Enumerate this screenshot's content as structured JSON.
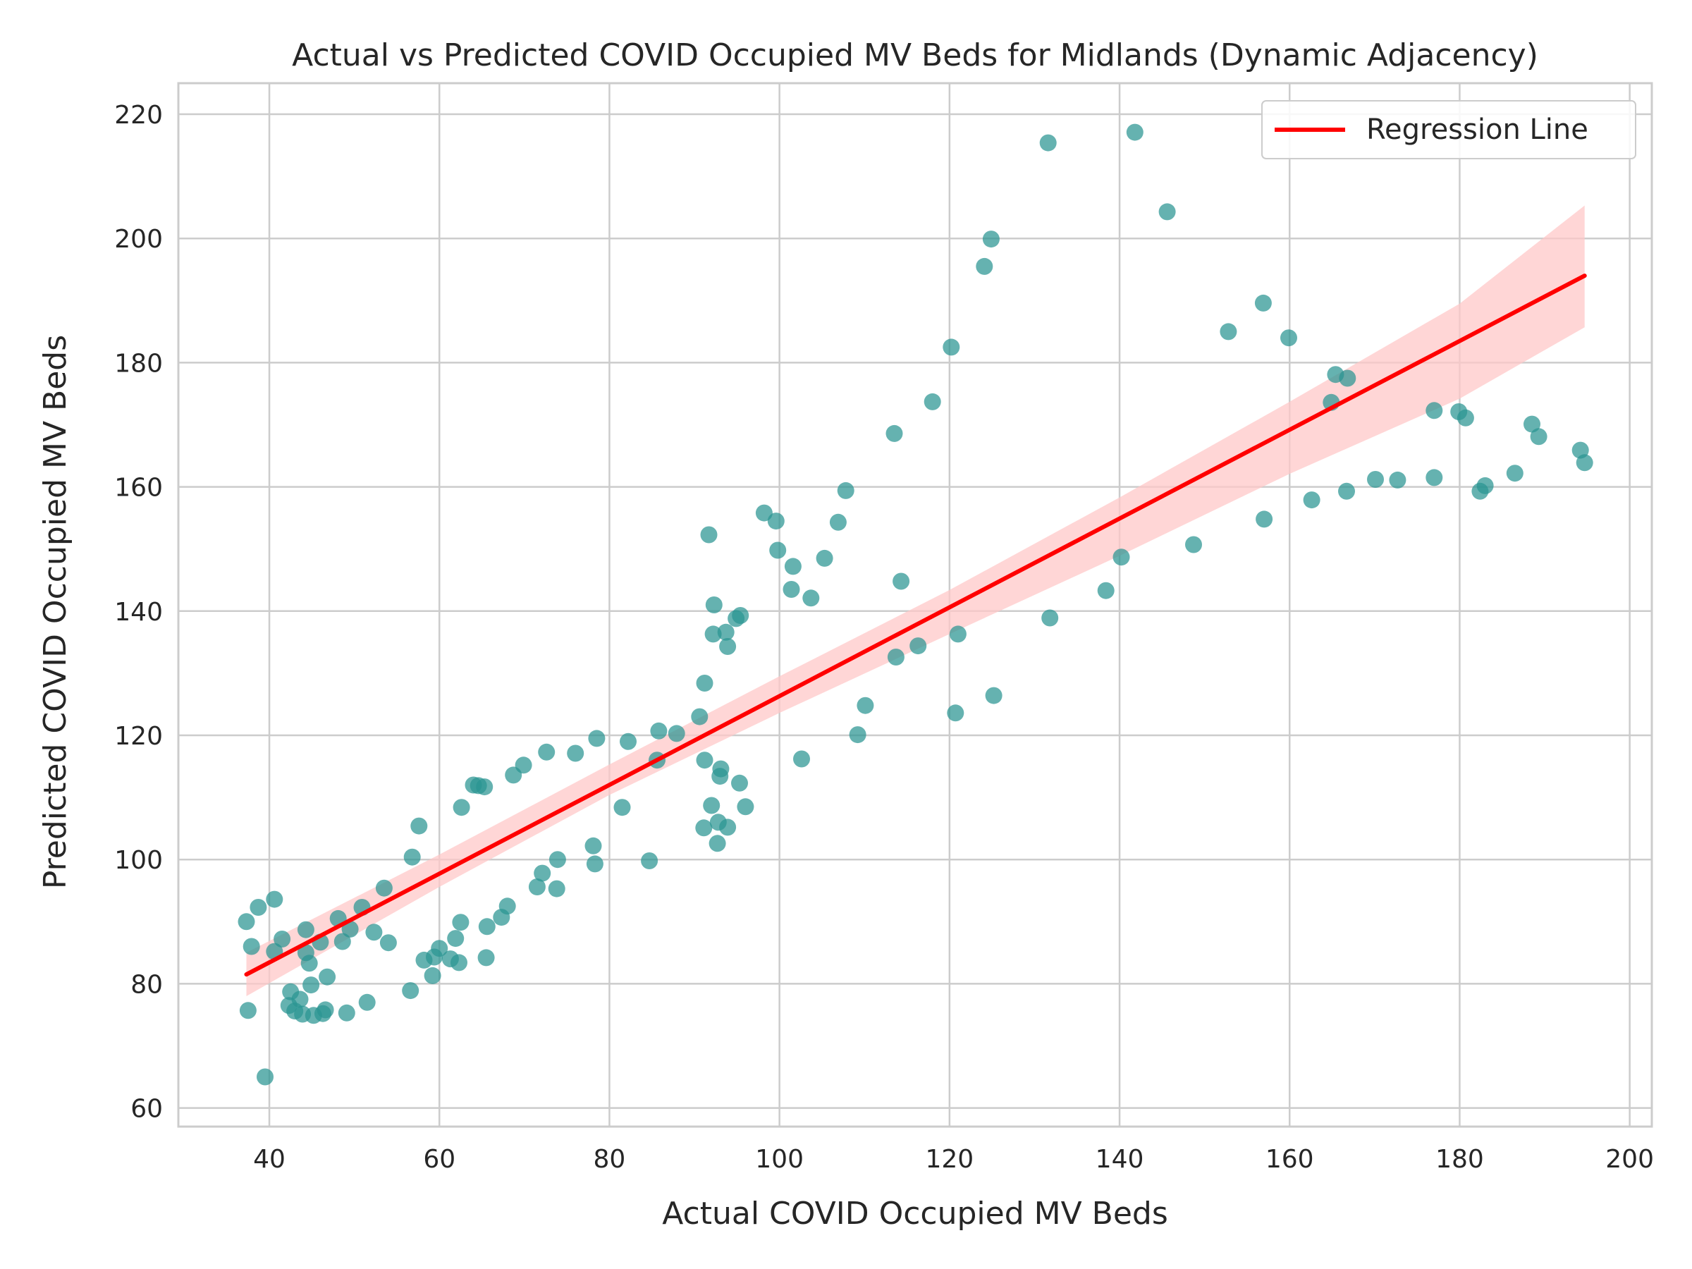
{
  "chart_data": {
    "type": "scatter",
    "title": "Actual vs Predicted COVID Occupied MV Beds for Midlands (Dynamic Adjacency)",
    "xlabel": "Actual COVID Occupied MV Beds",
    "ylabel": "Predicted COVID Occupied MV Beds",
    "xlim": [
      29.3,
      202.6
    ],
    "ylim": [
      57,
      225
    ],
    "xticks": [
      40,
      60,
      80,
      100,
      120,
      140,
      160,
      180,
      200
    ],
    "yticks": [
      60,
      80,
      100,
      120,
      140,
      160,
      180,
      200,
      220
    ],
    "grid": true,
    "legend_position": "top-right",
    "colors": {
      "points": "#2a9492",
      "regression": "#ff0000",
      "band": "#ffc8c8"
    },
    "points": [
      [
        37.3,
        90.0
      ],
      [
        37.5,
        75.7
      ],
      [
        37.9,
        86.0
      ],
      [
        38.7,
        92.3
      ],
      [
        39.5,
        65.0
      ],
      [
        40.6,
        93.6
      ],
      [
        40.6,
        85.2
      ],
      [
        41.5,
        87.2
      ],
      [
        42.3,
        76.5
      ],
      [
        42.5,
        78.7
      ],
      [
        43.0,
        75.6
      ],
      [
        43.6,
        77.5
      ],
      [
        43.9,
        75.1
      ],
      [
        44.3,
        88.7
      ],
      [
        44.3,
        85.0
      ],
      [
        44.7,
        83.3
      ],
      [
        44.9,
        79.8
      ],
      [
        45.2,
        74.9
      ],
      [
        46.0,
        86.7
      ],
      [
        46.3,
        75.2
      ],
      [
        46.6,
        75.8
      ],
      [
        46.8,
        81.1
      ],
      [
        48.1,
        90.5
      ],
      [
        48.6,
        86.8
      ],
      [
        49.1,
        75.3
      ],
      [
        49.5,
        88.8
      ],
      [
        50.9,
        92.3
      ],
      [
        51.5,
        77.0
      ],
      [
        52.3,
        88.3
      ],
      [
        53.5,
        95.4
      ],
      [
        54.0,
        86.6
      ],
      [
        56.6,
        78.9
      ],
      [
        56.8,
        100.4
      ],
      [
        57.6,
        105.4
      ],
      [
        58.2,
        83.8
      ],
      [
        59.2,
        81.3
      ],
      [
        59.4,
        84.3
      ],
      [
        60.0,
        85.7
      ],
      [
        61.3,
        84.0
      ],
      [
        61.9,
        87.3
      ],
      [
        62.3,
        83.4
      ],
      [
        62.5,
        89.9
      ],
      [
        62.6,
        108.4
      ],
      [
        64.0,
        112.0
      ],
      [
        64.6,
        111.9
      ],
      [
        65.3,
        111.7
      ],
      [
        65.5,
        84.2
      ],
      [
        65.6,
        89.2
      ],
      [
        67.3,
        90.7
      ],
      [
        68.0,
        92.5
      ],
      [
        68.7,
        113.6
      ],
      [
        69.9,
        115.2
      ],
      [
        71.5,
        95.6
      ],
      [
        72.1,
        97.8
      ],
      [
        72.6,
        117.3
      ],
      [
        73.8,
        95.3
      ],
      [
        73.9,
        100.0
      ],
      [
        76.0,
        117.1
      ],
      [
        78.1,
        102.2
      ],
      [
        78.3,
        99.3
      ],
      [
        78.5,
        119.5
      ],
      [
        81.5,
        108.4
      ],
      [
        82.2,
        119.0
      ],
      [
        84.7,
        99.8
      ],
      [
        85.6,
        116.0
      ],
      [
        85.8,
        120.7
      ],
      [
        87.9,
        120.3
      ],
      [
        90.6,
        123.0
      ],
      [
        91.1,
        105.1
      ],
      [
        91.2,
        128.4
      ],
      [
        91.2,
        116.0
      ],
      [
        91.7,
        152.3
      ],
      [
        92.0,
        108.7
      ],
      [
        92.2,
        136.3
      ],
      [
        92.3,
        141.0
      ],
      [
        92.7,
        102.6
      ],
      [
        92.8,
        106.0
      ],
      [
        93.0,
        113.4
      ],
      [
        93.1,
        114.6
      ],
      [
        93.7,
        136.6
      ],
      [
        93.9,
        105.2
      ],
      [
        93.9,
        134.3
      ],
      [
        94.9,
        138.8
      ],
      [
        95.3,
        112.3
      ],
      [
        95.4,
        139.3
      ],
      [
        96.0,
        108.5
      ],
      [
        98.2,
        155.8
      ],
      [
        99.6,
        154.5
      ],
      [
        99.8,
        149.8
      ],
      [
        101.4,
        143.5
      ],
      [
        101.6,
        147.2
      ],
      [
        102.6,
        116.2
      ],
      [
        103.7,
        142.1
      ],
      [
        105.3,
        148.5
      ],
      [
        106.9,
        154.3
      ],
      [
        107.8,
        159.4
      ],
      [
        109.2,
        120.1
      ],
      [
        110.1,
        124.8
      ],
      [
        113.5,
        168.6
      ],
      [
        113.7,
        132.6
      ],
      [
        114.3,
        144.8
      ],
      [
        116.3,
        134.4
      ],
      [
        118.0,
        173.7
      ],
      [
        120.2,
        182.5
      ],
      [
        120.7,
        123.6
      ],
      [
        121.0,
        136.3
      ],
      [
        124.1,
        195.5
      ],
      [
        124.9,
        199.9
      ],
      [
        125.2,
        126.4
      ],
      [
        131.6,
        215.4
      ],
      [
        131.8,
        138.9
      ],
      [
        138.4,
        143.3
      ],
      [
        140.2,
        148.7
      ],
      [
        141.8,
        217.1
      ],
      [
        145.6,
        204.3
      ],
      [
        148.7,
        150.7
      ],
      [
        152.8,
        185.0
      ],
      [
        156.9,
        189.6
      ],
      [
        157.0,
        154.8
      ],
      [
        159.9,
        184.0
      ],
      [
        162.6,
        157.9
      ],
      [
        164.9,
        173.6
      ],
      [
        165.4,
        178.1
      ],
      [
        166.7,
        159.3
      ],
      [
        166.8,
        177.5
      ],
      [
        170.1,
        161.2
      ],
      [
        172.7,
        161.1
      ],
      [
        177.0,
        172.3
      ],
      [
        177.0,
        161.5
      ],
      [
        179.9,
        172.1
      ],
      [
        180.7,
        171.1
      ],
      [
        182.4,
        159.3
      ],
      [
        183.0,
        160.2
      ],
      [
        186.5,
        162.2
      ],
      [
        188.5,
        170.1
      ],
      [
        189.3,
        168.1
      ],
      [
        194.2,
        165.9
      ],
      [
        194.7,
        163.9
      ]
    ],
    "regression": {
      "x": [
        37.3,
        194.7
      ],
      "y": [
        81.5,
        194.0
      ]
    },
    "confidence_band": {
      "x": [
        37.3,
        60,
        80,
        100,
        120,
        140,
        160,
        180,
        194.7
      ],
      "upper": [
        85.0,
        100.8,
        115.3,
        129.5,
        143.4,
        158.3,
        173.7,
        189.5,
        205.3
      ],
      "lower": [
        78.0,
        95.6,
        110.4,
        123.6,
        136.3,
        148.9,
        162.1,
        174.2,
        185.7
      ]
    },
    "legend": [
      {
        "label": "Regression Line",
        "color": "#ff0000"
      }
    ]
  }
}
